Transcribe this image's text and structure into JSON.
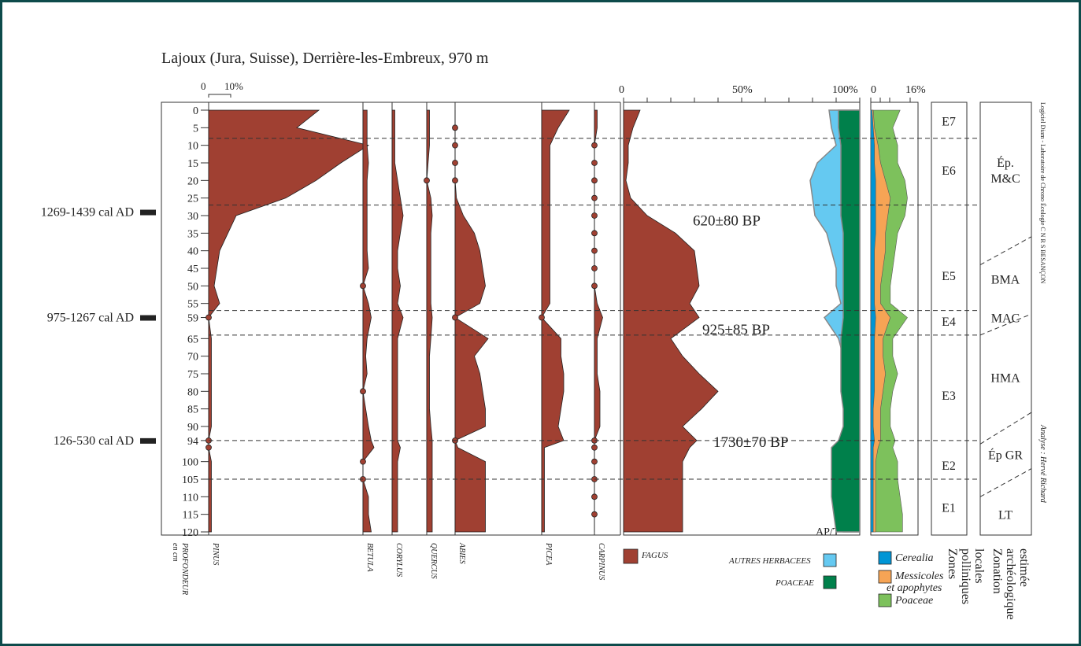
{
  "title": "Lajoux (Jura, Suisse), Derrière-les-Embreux, 970 m",
  "colors": {
    "taxon": "#a04032",
    "autres_herbacees": "#65c9f1",
    "poaceae_ap": "#00804b",
    "cerealia": "#0095d5",
    "messicoles": "#f6a455",
    "poaceae": "#7dc15c",
    "frame": "#0d4b4b"
  },
  "dates": [
    {
      "label": "1269-1439 cal AD",
      "depth": 29
    },
    {
      "label": "975-1267 cal AD",
      "depth": 59
    },
    {
      "label": "126-530 cal AD",
      "depth": 94
    }
  ],
  "radiocarbon": [
    {
      "label": "620±80 BP",
      "depth": 31
    },
    {
      "label": "925±85 BP",
      "depth": 62
    },
    {
      "label": "1730±70 BP",
      "depth": 94
    }
  ],
  "depth_label": [
    "PROFONDEUR",
    "en cm"
  ],
  "scale_small": {
    "zero": "0",
    "ten": "10%"
  },
  "scale_fagus": {
    "zero": "0",
    "fifty": "50%",
    "hundred": "100%"
  },
  "scale_herb": {
    "zero": "0",
    "sixteen": "16%"
  },
  "apt_label": "AP/T",
  "pollen_zones": {
    "title": [
      "Zones",
      "polliniques",
      "locales"
    ],
    "zones": [
      {
        "label": "E7",
        "depth": 3
      },
      {
        "label": "E6",
        "depth": 17
      },
      {
        "label": "E5",
        "depth": 47
      },
      {
        "label": "E4",
        "depth": 60
      },
      {
        "label": "E3",
        "depth": 81
      },
      {
        "label": "E2",
        "depth": 101
      },
      {
        "label": "E1",
        "depth": 113
      }
    ]
  },
  "archaeo_zones": {
    "title": [
      "Zonation",
      "archéologique",
      "estimée"
    ],
    "zones": [
      {
        "lines": [
          "Ép.",
          "M&C"
        ],
        "depth": 17
      },
      {
        "lines": [
          "BMA"
        ],
        "depth": 48
      },
      {
        "lines": [
          "MAC"
        ],
        "depth": 59
      },
      {
        "lines": [
          "HMA"
        ],
        "depth": 76
      },
      {
        "lines": [
          "Ép GR"
        ],
        "depth": 98
      },
      {
        "lines": [
          "LT"
        ],
        "depth": 115
      }
    ]
  },
  "legend": {
    "fagus": "FAGUS",
    "autres_herbacees": "AUTRES HERBACEES",
    "poaceae_ap": "POACEAE",
    "cerealia": "Cerealia",
    "messicoles": [
      "Messicoles",
      "et apophytes"
    ],
    "poaceae": "Poaceae"
  },
  "side_credits": {
    "lab": "Logiciel Diam - Laboratoire de Chrono Écologie C N R S BESANÇON",
    "analyst": "Analyse : Hervé Richard"
  },
  "chart_data": {
    "type": "pollen-diagram",
    "depth_axis": {
      "label": "PROFONDEUR en cm",
      "ticks": [
        0,
        5,
        10,
        15,
        20,
        25,
        30,
        35,
        40,
        45,
        50,
        55,
        59,
        65,
        70,
        75,
        80,
        85,
        90,
        94,
        100,
        105,
        110,
        115,
        120
      ],
      "range": [
        0,
        120
      ]
    },
    "depths": [
      0,
      5,
      10,
      15,
      20,
      25,
      30,
      35,
      40,
      45,
      50,
      55,
      59,
      65,
      70,
      75,
      80,
      85,
      90,
      94,
      96,
      100,
      105,
      110,
      115,
      120
    ],
    "series": [
      {
        "name": "PINUS",
        "values": [
          40,
          32,
          58,
          48,
          39,
          28,
          10,
          7,
          4,
          3,
          2,
          4,
          0,
          1,
          1,
          1,
          1,
          1,
          1,
          0,
          0,
          1,
          1,
          1,
          1,
          1
        ]
      },
      {
        "name": "BETULA",
        "values": [
          1.5,
          1.5,
          1.5,
          2,
          1.5,
          1.5,
          1.5,
          1.5,
          1.5,
          2,
          0,
          2,
          3,
          1.5,
          1,
          1.5,
          0,
          1,
          2,
          3,
          4,
          0,
          0,
          2,
          2,
          3
        ]
      },
      {
        "name": "CORYLUS",
        "values": [
          1,
          1,
          1,
          1,
          2,
          3,
          4,
          3,
          2,
          2,
          3,
          2,
          4,
          2,
          2,
          2,
          2,
          2,
          2,
          2,
          3,
          2,
          2,
          2,
          2,
          2
        ]
      },
      {
        "name": "QUERCUS",
        "values": [
          1,
          1,
          1,
          0.5,
          0,
          1.5,
          2,
          1.5,
          1.5,
          1.5,
          1.5,
          1.5,
          2,
          1.5,
          1,
          1,
          1,
          1,
          1.5,
          2,
          2,
          2,
          2,
          2,
          2,
          2
        ]
      },
      {
        "name": "ABIES",
        "values": [
          0,
          0,
          0,
          0,
          0,
          0.5,
          3,
          7,
          9,
          10,
          11,
          9,
          0,
          12,
          7,
          9,
          10,
          11,
          11,
          0,
          1,
          11,
          11,
          11,
          11,
          11
        ]
      },
      {
        "name": "PICEA",
        "values": [
          10,
          6,
          3,
          3,
          3,
          3,
          3,
          3,
          3,
          3,
          3,
          3,
          0,
          7,
          7,
          8,
          8,
          7,
          6,
          8,
          1,
          1,
          1,
          1,
          1,
          1
        ]
      },
      {
        "name": "CARPINUS",
        "values": [
          1,
          1,
          0,
          0,
          0,
          0,
          0,
          0,
          0,
          0,
          0,
          1,
          3,
          1,
          1,
          1,
          2,
          2,
          2,
          0,
          0,
          0,
          0,
          0,
          0,
          0
        ]
      },
      {
        "name": "FAGUS",
        "values": [
          7,
          4,
          2,
          2,
          1,
          3,
          10,
          22,
          30,
          31,
          32,
          28,
          32,
          20,
          25,
          32,
          40,
          33,
          25,
          31,
          28,
          25,
          25,
          25,
          25,
          25
        ]
      },
      {
        "name": "AP/T",
        "values": [
          87,
          88,
          90,
          82,
          79,
          80,
          81,
          86,
          88,
          90,
          90,
          92,
          85,
          91,
          93,
          94,
          95,
          95,
          96,
          94,
          92,
          91,
          92,
          91,
          92,
          93
        ]
      },
      {
        "name": "Poaceae AP",
        "values": [
          91,
          91,
          92,
          92,
          92,
          92,
          92,
          93,
          93,
          93,
          93,
          93,
          93,
          92,
          92,
          92,
          92,
          93,
          93,
          91,
          88,
          88,
          88,
          88,
          89,
          90
        ]
      }
    ],
    "herb_series": [
      {
        "name": "Cerealia",
        "values": [
          0.5,
          1,
          1.5,
          1.5,
          2,
          2,
          2,
          2,
          1.5,
          1.5,
          1.5,
          1.5,
          2,
          1.5,
          1.5,
          1.5,
          1.5,
          1,
          1,
          1.5,
          1,
          1,
          1,
          1,
          1,
          1
        ]
      },
      {
        "name": "Messicoles et apophytes",
        "values": [
          1,
          1.5,
          3,
          4,
          6,
          8,
          7,
          6,
          6,
          5,
          4,
          4,
          8,
          5,
          5,
          6,
          5,
          4,
          4,
          4,
          3,
          2,
          2,
          2,
          2,
          2
        ]
      },
      {
        "name": "Poaceae",
        "values": [
          12,
          9,
          11,
          11,
          14,
          15,
          14,
          11,
          10,
          9,
          8,
          8,
          15,
          9,
          9,
          11,
          9,
          8,
          8,
          10,
          9,
          11,
          11,
          12,
          13,
          13
        ]
      }
    ]
  }
}
